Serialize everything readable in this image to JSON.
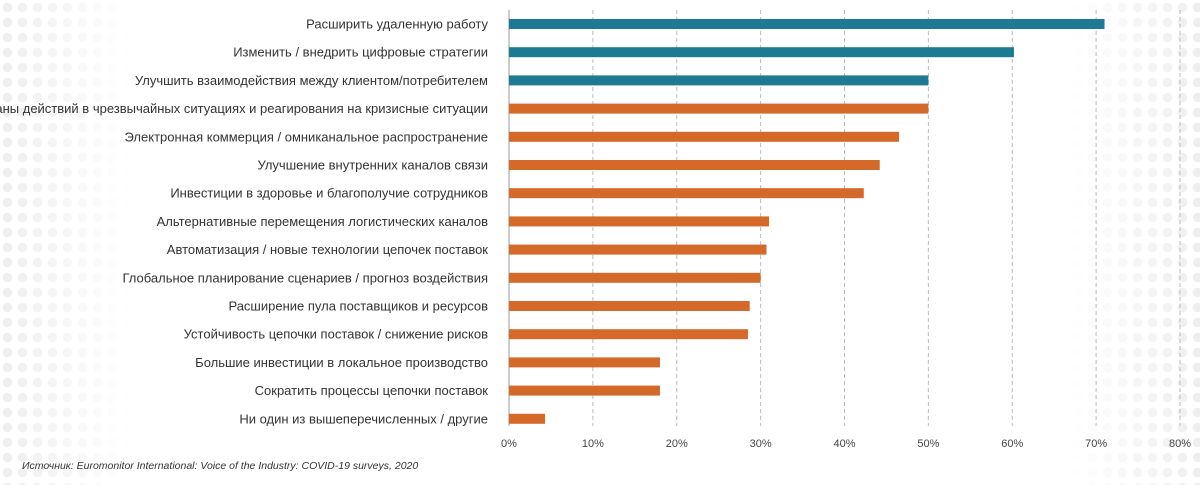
{
  "chart_data": {
    "type": "bar",
    "orientation": "horizontal",
    "categories": [
      "Расширить удаленную работу",
      "Изменить / внедрить цифровые стратегии",
      "Улучшить взаимодействия между клиентом/потребителем",
      "Планы действий в чрезвычайных ситуациях и реагирования на кризисные ситуации",
      "Электронная коммерция / омниканальное распространение",
      "Улучшение внутренних каналов связи",
      "Инвестиции в здоровье и благополучие сотрудников",
      "Альтернативные перемещения логистических каналов",
      "Автоматизация / новые технологии цепочек поставок",
      "Глобальное планирование сценариев / прогноз воздействия",
      "Расширение пула поставщиков и ресурсов",
      "Устойчивость цепочки поставок / снижение рисков",
      "Большие инвестиции в локальное производство",
      "Сократить процессы цепочки поставок",
      "Ни один из вышеперечисленных / другие"
    ],
    "values": [
      71,
      60.2,
      50,
      50,
      46.5,
      44.2,
      42.3,
      31,
      30.7,
      30,
      28.7,
      28.5,
      18,
      18,
      4.3
    ],
    "highlight_count": 3,
    "colors": {
      "highlight": "#1e7a93",
      "normal": "#d4692a",
      "grid": "#bbbbbb",
      "axis": "#999999"
    },
    "xlim": [
      0,
      80
    ],
    "xticks": [
      "0%",
      "10%",
      "20%",
      "30%",
      "40%",
      "50%",
      "60%",
      "70%",
      "80%"
    ],
    "grid": "vertical-dashed",
    "title": "",
    "xlabel": "",
    "ylabel": ""
  },
  "source_text": "Источник: Euromonitor International: Voice of the Industry: COVID-19 surveys, 2020"
}
